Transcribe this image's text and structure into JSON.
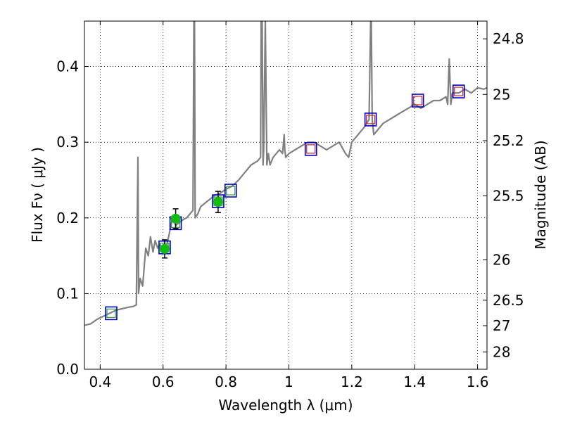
{
  "chart_data": {
    "type": "line",
    "xlabel": "Wavelength  λ (μm)",
    "ylabel": "Flux  Fν  ( μJy )",
    "y2label": "Magnitude (AB)",
    "xlim": [
      0.35,
      1.63
    ],
    "ylim": [
      0.0,
      0.46
    ],
    "grid": true,
    "x_ticks": [
      0.4,
      0.6,
      0.8,
      1.0,
      1.2,
      1.4,
      1.6
    ],
    "x_tick_labels": [
      "0.4",
      "0.6",
      "0.8",
      "1",
      "1.2",
      "1.4",
      "1.6"
    ],
    "y_ticks": [
      0.0,
      0.1,
      0.2,
      0.3,
      0.4
    ],
    "y_tick_labels": [
      "0.0",
      "0.1",
      "0.2",
      "0.3",
      "0.4"
    ],
    "y2_ticks": [
      24.8,
      25.0,
      25.2,
      25.5,
      26.0,
      26.5,
      27.0,
      28.0
    ],
    "y2_tick_labels": [
      "24.8",
      "25",
      "25.2",
      "25.5",
      "26",
      "26.5",
      "27",
      "28"
    ],
    "colors": {
      "model": "#808080",
      "square_edge": "#0000cc",
      "model_photometry_green": "#2e9d2e",
      "model_photometry_red": "#cc2222",
      "observed": "#11bb11",
      "errorbar": "#000000"
    },
    "series": [
      {
        "style": "model-spectrum",
        "x": [
          0.35,
          0.37,
          0.39,
          0.41,
          0.43,
          0.45,
          0.47,
          0.49,
          0.505,
          0.515,
          0.52,
          0.522,
          0.527,
          0.535,
          0.545,
          0.553,
          0.56,
          0.568,
          0.575,
          0.583,
          0.59,
          0.6,
          0.61,
          0.62,
          0.63,
          0.64,
          0.655,
          0.665,
          0.675,
          0.685,
          0.695,
          0.698,
          0.7,
          0.702,
          0.71,
          0.72,
          0.735,
          0.75,
          0.765,
          0.78,
          0.8,
          0.82,
          0.84,
          0.86,
          0.88,
          0.9,
          0.91,
          0.912,
          0.915,
          0.918,
          0.92,
          0.925,
          0.93,
          0.935,
          0.94,
          0.95,
          0.96,
          0.97,
          0.98,
          0.985,
          0.987,
          0.99,
          1.0,
          1.02,
          1.04,
          1.06,
          1.08,
          1.1,
          1.12,
          1.14,
          1.16,
          1.18,
          1.19,
          1.2,
          1.22,
          1.24,
          1.255,
          1.26,
          1.262,
          1.265,
          1.27,
          1.28,
          1.3,
          1.32,
          1.34,
          1.36,
          1.38,
          1.4,
          1.42,
          1.44,
          1.46,
          1.48,
          1.5,
          1.505,
          1.51,
          1.515,
          1.52,
          1.54,
          1.56,
          1.58,
          1.6,
          1.62,
          1.63
        ],
        "y": [
          0.058,
          0.06,
          0.066,
          0.07,
          0.074,
          0.078,
          0.08,
          0.082,
          0.083,
          0.085,
          0.28,
          0.1,
          0.12,
          0.11,
          0.16,
          0.15,
          0.175,
          0.155,
          0.17,
          0.16,
          0.165,
          0.155,
          0.16,
          0.18,
          0.2,
          0.19,
          0.195,
          0.198,
          0.2,
          0.205,
          0.21,
          0.46,
          0.46,
          0.2,
          0.205,
          0.215,
          0.22,
          0.225,
          0.23,
          0.232,
          0.238,
          0.242,
          0.25,
          0.26,
          0.27,
          0.275,
          0.28,
          0.46,
          0.46,
          0.27,
          0.29,
          0.46,
          0.27,
          0.285,
          0.27,
          0.28,
          0.285,
          0.29,
          0.285,
          0.31,
          0.29,
          0.28,
          0.285,
          0.29,
          0.295,
          0.3,
          0.3,
          0.295,
          0.29,
          0.295,
          0.3,
          0.285,
          0.28,
          0.3,
          0.31,
          0.32,
          0.33,
          0.46,
          0.46,
          0.33,
          0.31,
          0.315,
          0.325,
          0.33,
          0.335,
          0.34,
          0.345,
          0.35,
          0.345,
          0.35,
          0.355,
          0.355,
          0.36,
          0.35,
          0.41,
          0.35,
          0.365,
          0.365,
          0.37,
          0.365,
          0.372,
          0.37,
          0.372
        ]
      },
      {
        "style": "model-photometry",
        "x": [
          0.435,
          0.605,
          0.64,
          0.775,
          0.815,
          1.07,
          1.26,
          1.41,
          1.54
        ],
        "y": [
          0.074,
          0.161,
          0.193,
          0.222,
          0.236,
          0.291,
          0.33,
          0.355,
          0.367
        ]
      },
      {
        "style": "observed",
        "x": [
          0.605,
          0.64,
          0.775
        ],
        "y": [
          0.159,
          0.199,
          0.221
        ],
        "yerr": [
          0.012,
          0.013,
          0.014
        ]
      }
    ]
  }
}
